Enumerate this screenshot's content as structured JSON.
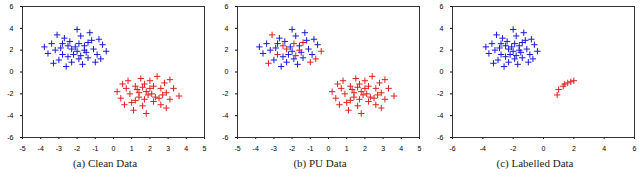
{
  "chart_data": [
    {
      "type": "scatter",
      "title": "(a) Clean Data",
      "xlim": [
        -5,
        5
      ],
      "xticks": [
        -5,
        -4,
        -3,
        -2,
        -1,
        0,
        1,
        2,
        3,
        4,
        5
      ],
      "ylim": [
        -6,
        6
      ],
      "yticks": [
        -6,
        -4,
        -2,
        0,
        2,
        4,
        6
      ],
      "series": [
        {
          "color": "#1a1adb",
          "marker": "plus",
          "x": [
            -2.1,
            -1.5,
            -2.8,
            -1.2,
            -2.5,
            -3.2,
            -1.8,
            -0.9,
            -2.3,
            -3.6,
            -1.6,
            -2.0,
            -2.7,
            -1.1,
            -3.0,
            -0.6,
            -2.4,
            -1.9,
            -3.4,
            -1.3,
            -2.2,
            -1.7,
            -2.9,
            -0.8,
            -2.6,
            -1.4,
            -3.8,
            -2.0,
            -0.4,
            -2.3,
            -1.6,
            -2.8,
            -1.0,
            -3.1,
            -1.9,
            -0.7,
            -2.5,
            -1.4,
            -3.3,
            -1.8
          ],
          "y": [
            2.3,
            1.8,
            2.6,
            2.9,
            1.4,
            2.0,
            3.3,
            1.6,
            0.9,
            1.7,
            2.4,
            1.9,
            3.1,
            2.1,
            1.1,
            2.5,
            2.8,
            1.2,
            2.6,
            3.6,
            1.6,
            0.7,
            2.2,
            3.0,
            0.5,
            1.3,
            2.3,
            3.9,
            1.9,
            2.1,
            2.0,
            1.6,
            0.9,
            3.4,
            2.6,
            1.2,
            2.4,
            2.7,
            0.8,
            1.5
          ]
        },
        {
          "color": "#e0201e",
          "marker": "plus",
          "x": [
            1.9,
            1.3,
            2.5,
            1.0,
            2.2,
            2.9,
            1.6,
            0.7,
            2.0,
            3.3,
            1.4,
            1.8,
            2.6,
            0.9,
            2.8,
            0.4,
            2.2,
            1.7,
            3.1,
            1.1,
            2.0,
            1.5,
            2.7,
            0.6,
            2.4,
            1.2,
            3.6,
            1.8,
            0.2,
            2.1,
            1.4,
            2.6,
            0.8,
            2.9,
            1.7,
            0.5,
            2.3,
            1.2,
            3.1,
            1.6
          ],
          "y": [
            -2.1,
            -1.6,
            -2.4,
            -2.8,
            -1.3,
            -1.9,
            -3.1,
            -1.5,
            -0.8,
            -1.5,
            -2.3,
            -1.8,
            -3.0,
            -2.0,
            -1.0,
            -2.4,
            -2.7,
            -1.1,
            -2.5,
            -3.5,
            -1.5,
            -0.6,
            -2.1,
            -3.0,
            -0.4,
            -1.3,
            -2.2,
            -3.8,
            -1.8,
            -2.0,
            -1.9,
            -1.5,
            -0.8,
            -3.3,
            -2.5,
            -1.1,
            -2.3,
            -2.6,
            -0.7,
            -1.4
          ]
        }
      ]
    },
    {
      "type": "scatter",
      "title": "(b) PU Data",
      "xlim": [
        -5,
        5
      ],
      "xticks": [
        -5,
        -4,
        -3,
        -2,
        -1,
        0,
        1,
        2,
        3,
        4,
        5
      ],
      "ylim": [
        -6,
        6
      ],
      "yticks": [
        -6,
        -4,
        -2,
        0,
        2,
        4,
        6
      ],
      "series": [
        {
          "color": "#1a1adb",
          "marker": "plus",
          "x": [
            -2.1,
            -1.5,
            -2.8,
            -1.2,
            -2.5,
            -3.2,
            -1.8,
            -0.9,
            -2.3,
            -3.6,
            -1.6,
            -2.0,
            -2.7,
            -1.1,
            -3.0,
            -0.6,
            -2.4,
            -1.9,
            -3.4,
            -1.3,
            -2.2,
            -1.7,
            -2.9,
            -0.8,
            -2.6,
            -1.4,
            -3.8,
            -2.0
          ],
          "y": [
            2.3,
            1.8,
            2.6,
            2.9,
            1.4,
            2.0,
            3.3,
            1.6,
            0.9,
            1.7,
            2.4,
            1.9,
            3.1,
            2.1,
            1.1,
            2.5,
            2.8,
            1.2,
            2.6,
            3.6,
            1.6,
            0.7,
            2.2,
            3.0,
            0.5,
            1.3,
            2.3,
            3.9
          ]
        },
        {
          "color": "#e0201e",
          "marker": "plus",
          "x": [
            1.9,
            1.3,
            2.5,
            1.0,
            2.2,
            2.9,
            1.6,
            0.7,
            2.0,
            3.3,
            1.4,
            1.8,
            2.6,
            0.9,
            2.8,
            0.4,
            2.2,
            1.7,
            3.1,
            1.1,
            2.0,
            1.5,
            2.7,
            0.6,
            2.4,
            1.2,
            3.6,
            1.8,
            0.2,
            2.1,
            1.4,
            2.6,
            0.8,
            2.9,
            1.7,
            0.5,
            2.3,
            1.2,
            3.1,
            1.6,
            -0.4,
            -2.3,
            -1.6,
            -2.8,
            -1.0,
            -3.1,
            -1.9,
            -0.7,
            -2.5,
            -1.4,
            -3.3,
            -1.8
          ],
          "y": [
            -2.1,
            -1.6,
            -2.4,
            -2.8,
            -1.3,
            -1.9,
            -3.1,
            -1.5,
            -0.8,
            -1.5,
            -2.3,
            -1.8,
            -3.0,
            -2.0,
            -1.0,
            -2.4,
            -2.7,
            -1.1,
            -2.5,
            -3.5,
            -1.5,
            -0.6,
            -2.1,
            -3.0,
            -0.4,
            -1.3,
            -2.2,
            -3.8,
            -1.8,
            -2.0,
            -1.9,
            -1.5,
            -0.8,
            -3.3,
            -2.5,
            -1.1,
            -2.3,
            -2.6,
            -0.7,
            -1.4,
            1.9,
            2.1,
            2.0,
            1.6,
            0.9,
            3.4,
            2.6,
            1.2,
            2.4,
            2.7,
            0.8,
            1.5
          ]
        }
      ]
    },
    {
      "type": "scatter",
      "title": "(c) Labelled Data",
      "xlim": [
        -6,
        6
      ],
      "xticks": [
        -6,
        -4,
        -2,
        0,
        2,
        4,
        6
      ],
      "ylim": [
        -6,
        6
      ],
      "yticks": [
        -6,
        -4,
        -2,
        0,
        2,
        4,
        6
      ],
      "series": [
        {
          "color": "#1a1adb",
          "marker": "plus",
          "x": [
            -2.1,
            -1.5,
            -2.8,
            -1.2,
            -2.5,
            -3.2,
            -1.8,
            -0.9,
            -2.3,
            -3.6,
            -1.6,
            -2.0,
            -2.7,
            -1.1,
            -3.0,
            -0.6,
            -2.4,
            -1.9,
            -3.4,
            -1.3,
            -2.2,
            -1.7,
            -2.9,
            -0.8,
            -2.6,
            -1.4,
            -3.8,
            -2.0,
            -0.4,
            -2.3,
            -1.6,
            -2.8,
            -1.0,
            -3.1,
            -1.9,
            -0.7,
            -2.5,
            -1.4,
            -3.3,
            -1.8
          ],
          "y": [
            2.3,
            1.8,
            2.6,
            2.9,
            1.4,
            2.0,
            3.3,
            1.6,
            0.9,
            1.7,
            2.4,
            1.9,
            3.1,
            2.1,
            1.1,
            2.5,
            2.8,
            1.2,
            2.6,
            3.6,
            1.6,
            0.7,
            2.2,
            3.0,
            0.5,
            1.3,
            2.3,
            3.9,
            1.9,
            2.1,
            2.0,
            1.6,
            0.9,
            3.4,
            2.6,
            1.2,
            2.4,
            2.7,
            0.8,
            1.5
          ]
        },
        {
          "color": "#e0201e",
          "marker": "plus",
          "x": [
            1.6,
            1.3,
            1.0,
            1.8,
            0.9,
            1.4,
            2.0
          ],
          "y": [
            -1.0,
            -1.3,
            -1.6,
            -0.9,
            -2.1,
            -1.1,
            -0.8
          ]
        }
      ]
    }
  ]
}
